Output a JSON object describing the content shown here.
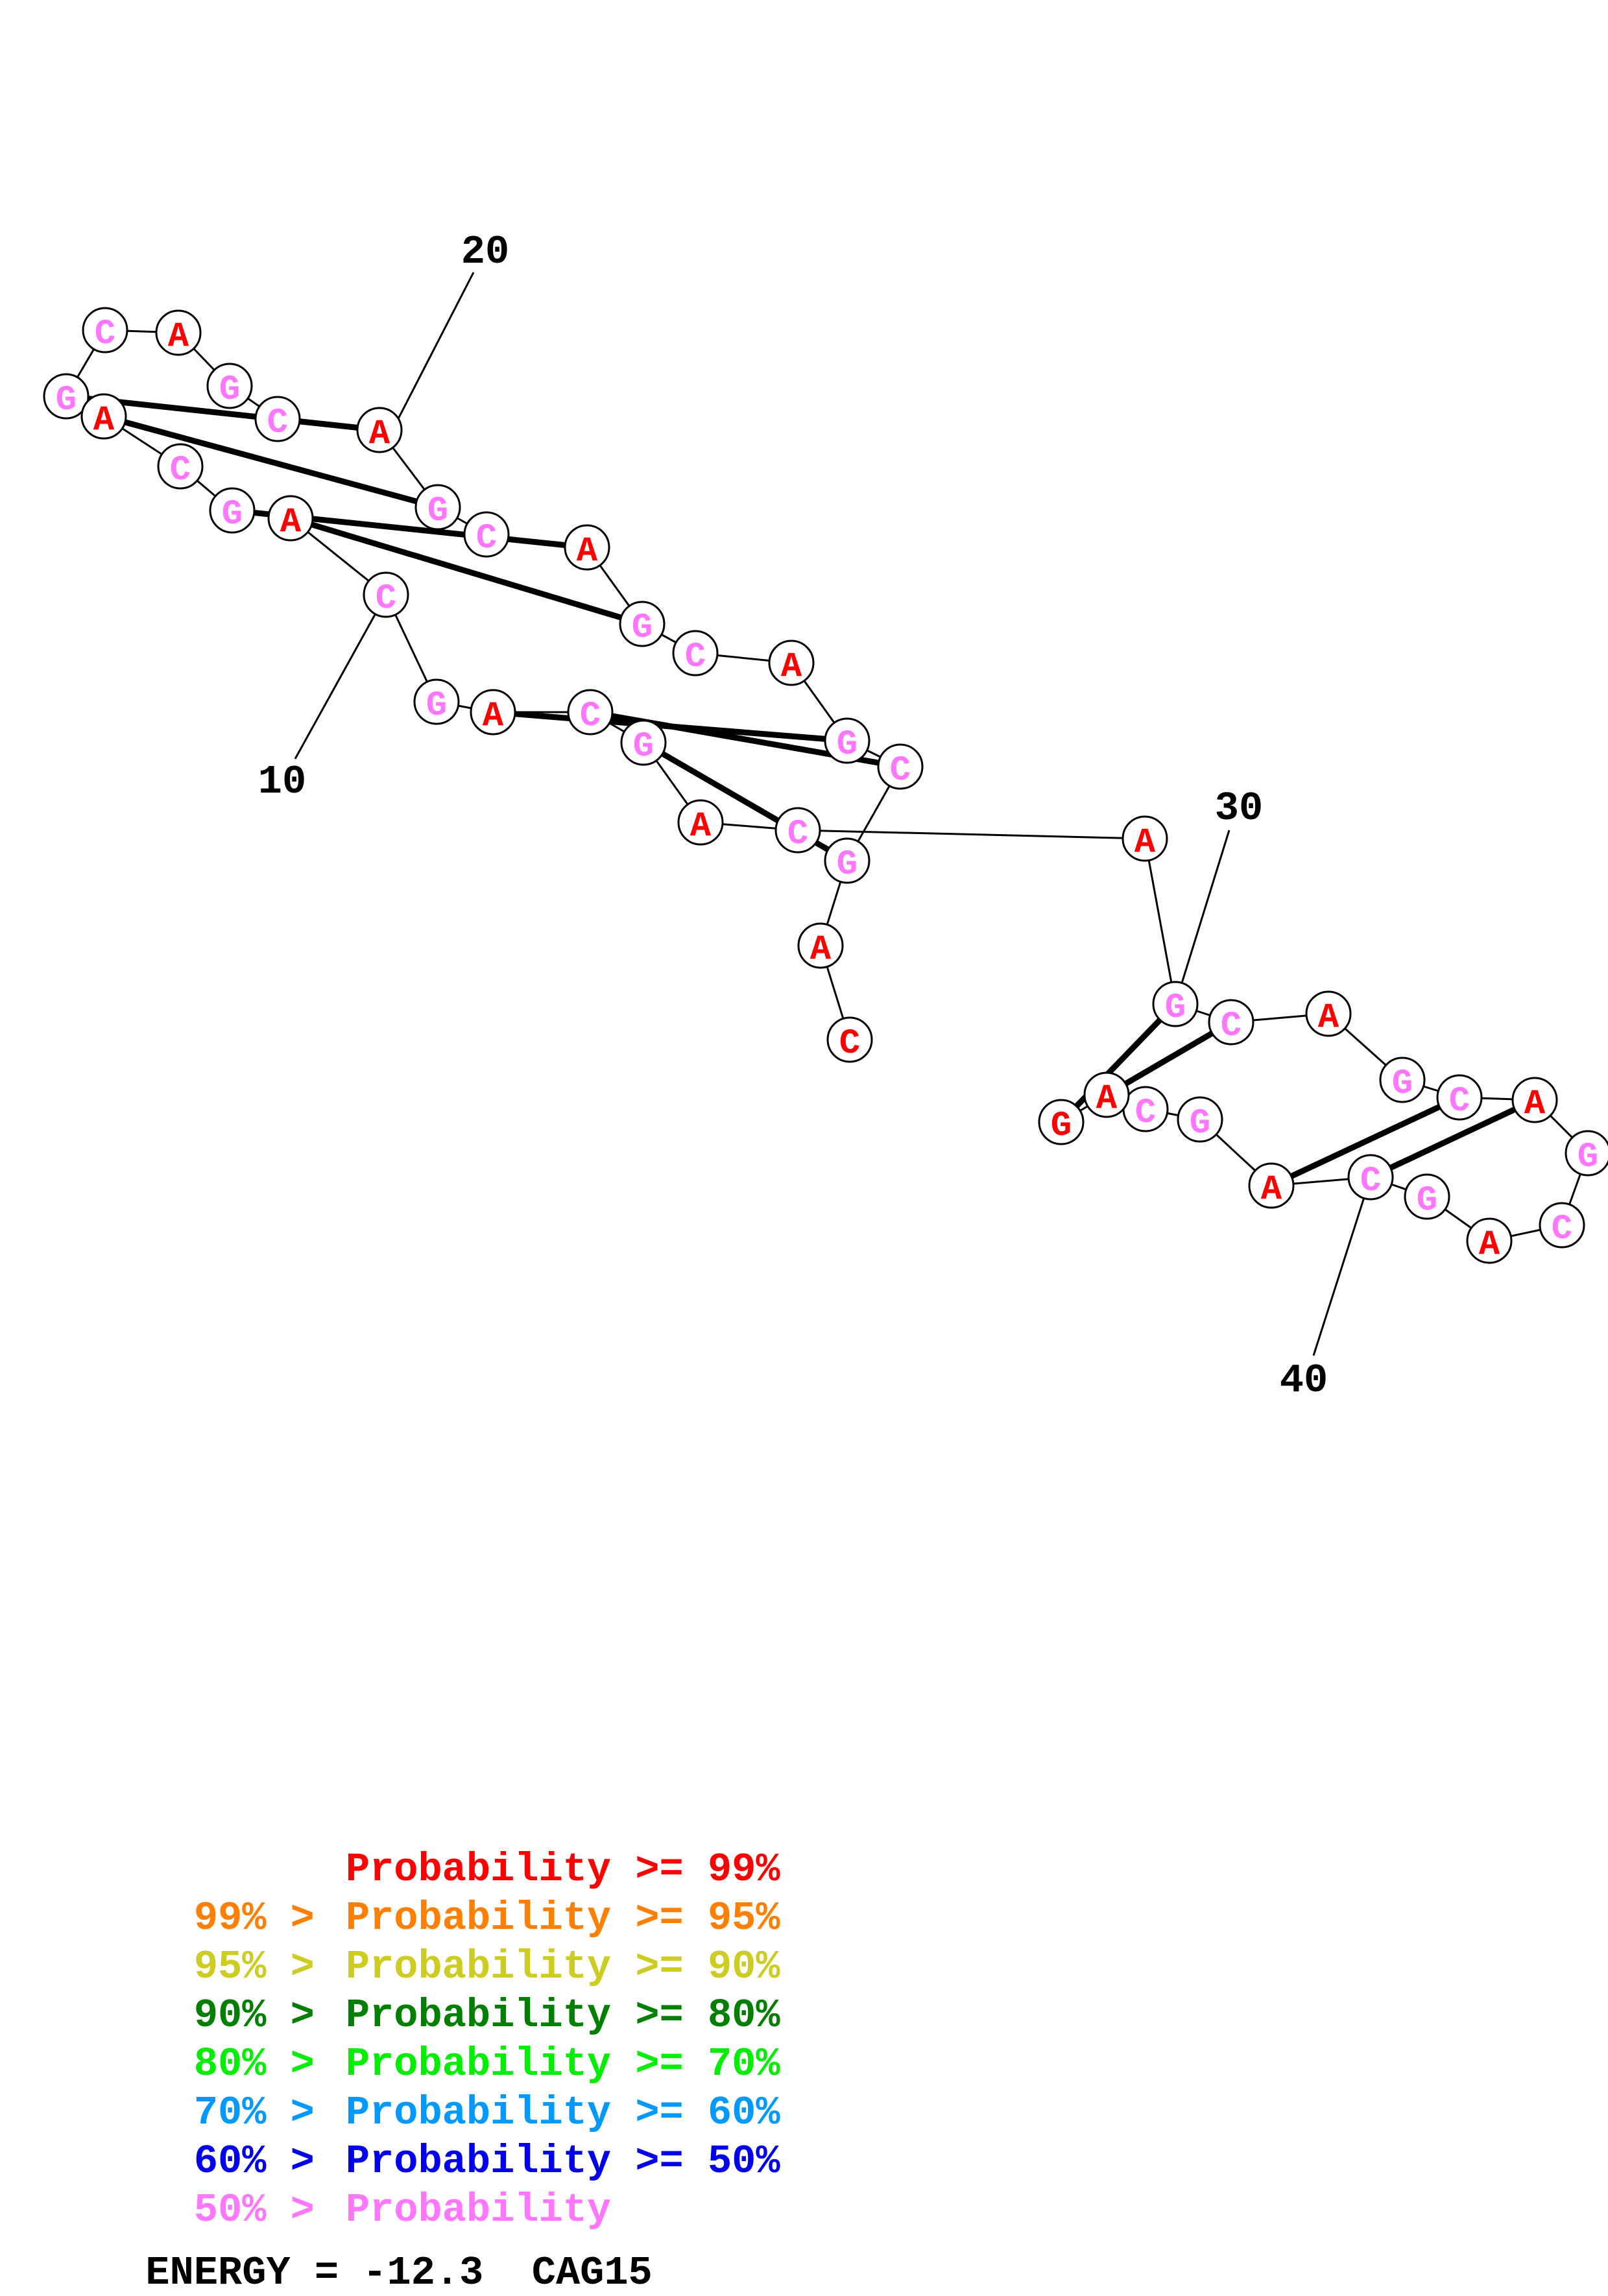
{
  "sequence": [
    "C",
    "A",
    "G",
    "C",
    "A",
    "G",
    "C",
    "A",
    "G",
    "C",
    "A",
    "G",
    "C",
    "A",
    "G",
    "C",
    "A",
    "G",
    "C",
    "A",
    "G",
    "C",
    "A",
    "G",
    "C",
    "A",
    "G",
    "C",
    "A",
    "G",
    "C",
    "A",
    "G",
    "C",
    "A",
    "G",
    "C",
    "A",
    "G",
    "C",
    "A",
    "G",
    "C",
    "A",
    "G",
    "C",
    "A",
    "G",
    "C"
  ],
  "bases": [
    {
      "letter": "C",
      "color": "#ff0000"
    },
    {
      "letter": "A",
      "color": "#ff0000"
    },
    {
      "letter": "G",
      "color": "#ff77ff"
    },
    {
      "letter": "C",
      "color": "#ff77ff"
    },
    {
      "letter": "A",
      "color": "#ff0000"
    },
    {
      "letter": "G",
      "color": "#ff77ff"
    },
    {
      "letter": "C",
      "color": "#ff77ff"
    },
    {
      "letter": "A",
      "color": "#ff0000"
    },
    {
      "letter": "G",
      "color": "#ff77ff"
    },
    {
      "letter": "C",
      "color": "#ff77ff"
    },
    {
      "letter": "A",
      "color": "#ff0000"
    },
    {
      "letter": "G",
      "color": "#ff77ff"
    },
    {
      "letter": "C",
      "color": "#ff77ff"
    },
    {
      "letter": "A",
      "color": "#ff0000"
    },
    {
      "letter": "G",
      "color": "#ff77ff"
    },
    {
      "letter": "C",
      "color": "#ff77ff"
    },
    {
      "letter": "A",
      "color": "#ff0000"
    },
    {
      "letter": "G",
      "color": "#ff77ff"
    },
    {
      "letter": "C",
      "color": "#ff77ff"
    },
    {
      "letter": "A",
      "color": "#ff0000"
    },
    {
      "letter": "G",
      "color": "#ff77ff"
    },
    {
      "letter": "C",
      "color": "#ff77ff"
    },
    {
      "letter": "A",
      "color": "#ff0000"
    },
    {
      "letter": "G",
      "color": "#ff77ff"
    },
    {
      "letter": "C",
      "color": "#ff77ff"
    },
    {
      "letter": "A",
      "color": "#ff0000"
    },
    {
      "letter": "G",
      "color": "#ff77ff"
    },
    {
      "letter": "C",
      "color": "#ff77ff"
    },
    {
      "letter": "A",
      "color": "#ff0000"
    },
    {
      "letter": "G",
      "color": "#ff77ff"
    },
    {
      "letter": "C",
      "color": "#ff77ff"
    },
    {
      "letter": "A",
      "color": "#ff0000"
    },
    {
      "letter": "G",
      "color": "#ff77ff"
    },
    {
      "letter": "C",
      "color": "#ff77ff"
    },
    {
      "letter": "A",
      "color": "#ff0000"
    },
    {
      "letter": "G",
      "color": "#ff77ff"
    },
    {
      "letter": "C",
      "color": "#ff77ff"
    },
    {
      "letter": "A",
      "color": "#ff0000"
    },
    {
      "letter": "G",
      "color": "#ff77ff"
    },
    {
      "letter": "C",
      "color": "#ff77ff"
    },
    {
      "letter": "A",
      "color": "#ff0000"
    },
    {
      "letter": "G",
      "color": "#ff77ff"
    },
    {
      "letter": "C",
      "color": "#ff77ff"
    },
    {
      "letter": "A",
      "color": "#ff0000"
    },
    {
      "letter": "G",
      "color": "#ff77ff"
    },
    {
      "letter": "C",
      "color": "#ff77ff"
    },
    {
      "letter": "A",
      "color": "#ff0000"
    },
    {
      "letter": "G",
      "color": "#ff0000"
    },
    {
      "letter": "C",
      "color": "#ff0000"
    }
  ],
  "pairs": [
    [
      3,
      20
    ],
    [
      4,
      19
    ],
    [
      7,
      16
    ],
    [
      8,
      15
    ],
    [
      11,
      12
    ],
    [
      23,
      46
    ],
    [
      24,
      45
    ],
    [
      29,
      40
    ],
    [
      30,
      39
    ],
    [
      33,
      36
    ]
  ],
  "position_labels": [
    "10",
    "20",
    "30",
    "40"
  ],
  "legend": {
    "rows": [
      {
        "prefix": "",
        "label": "Probability",
        "suffix": ">= 99%",
        "color": "#ff0000"
      },
      {
        "prefix": "99% >",
        "label": "Probability",
        "suffix": ">= 95%",
        "color": "#ff7f00"
      },
      {
        "prefix": "95% >",
        "label": "Probability",
        "suffix": ">= 90%",
        "color": "#cccc22"
      },
      {
        "prefix": "90% >",
        "label": "Probability",
        "suffix": ">= 80%",
        "color": "#007f00"
      },
      {
        "prefix": "80% >",
        "label": "Probability",
        "suffix": ">= 70%",
        "color": "#00ee00"
      },
      {
        "prefix": "70% >",
        "label": "Probability",
        "suffix": ">= 60%",
        "color": "#0099ff"
      },
      {
        "prefix": "60% >",
        "label": "Probability",
        "suffix": ">= 50%",
        "color": "#0000ee"
      },
      {
        "prefix": "50% >",
        "label": "Probability",
        "suffix": "",
        "color": "#ff77ff"
      }
    ]
  },
  "energy_label": "ENERGY = -12.3",
  "sequence_name": "CAG15"
}
